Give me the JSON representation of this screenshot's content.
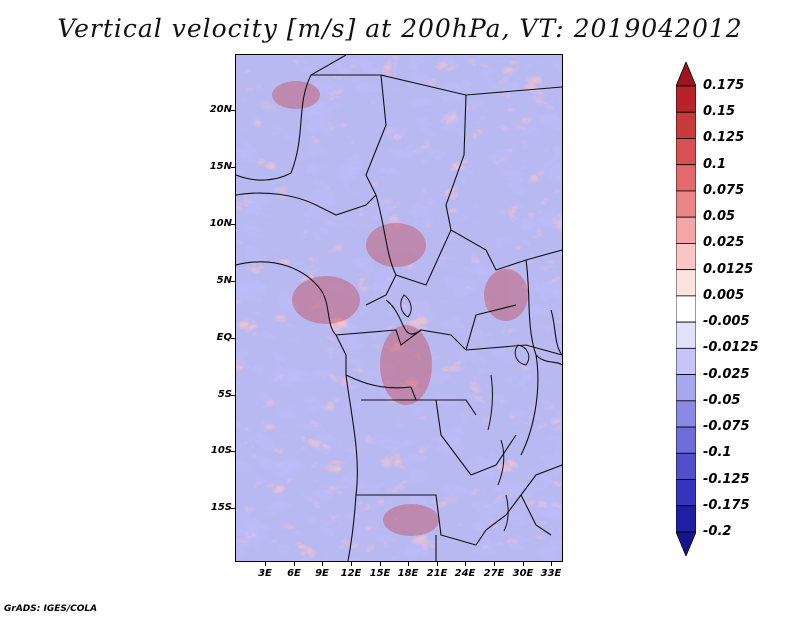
{
  "title": "Vertical velocity [m/s] at 200hPa, VT: 2019042012",
  "footer": "GrADS: IGES/COLA",
  "map": {
    "lat_labels": [
      "20N",
      "15N",
      "10N",
      "5N",
      "EQ",
      "5S",
      "10S",
      "15S"
    ],
    "lon_labels": [
      "3E",
      "6E",
      "9E",
      "12E",
      "15E",
      "18E",
      "21E",
      "24E",
      "27E",
      "30E",
      "33E"
    ],
    "lon_range": [
      0,
      34
    ],
    "lat_range": [
      -19.6,
      24.7
    ]
  },
  "colorbar": {
    "labels": [
      "0.175",
      "0.15",
      "0.125",
      "0.1",
      "0.075",
      "0.05",
      "0.025",
      "0.0125",
      "0.005",
      "-0.005",
      "-0.0125",
      "-0.025",
      "-0.05",
      "-0.075",
      "-0.1",
      "-0.125",
      "-0.175",
      "-0.2"
    ],
    "colors": [
      "#a0141e",
      "#b8232a",
      "#c93a3a",
      "#d95050",
      "#e36a6a",
      "#ec8686",
      "#f4a5a5",
      "#f9c6c6",
      "#fde2e2",
      "#ffffff",
      "#e1e1fb",
      "#c6c6f6",
      "#a7a7ef",
      "#8a8ae6",
      "#6d6ddb",
      "#5050cd",
      "#3434bc",
      "#1f1fa6",
      "#16168c"
    ]
  }
}
